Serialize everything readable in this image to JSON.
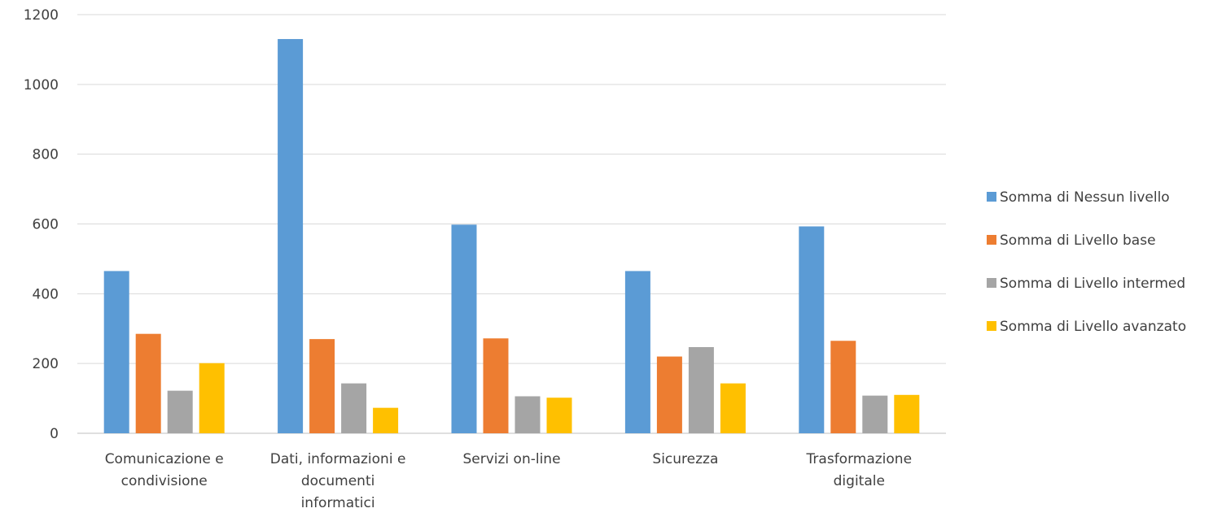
{
  "chart_data": {
    "type": "bar",
    "title": "",
    "xlabel": "",
    "ylabel": "",
    "ylim": [
      0,
      1200
    ],
    "yticks": [
      0,
      200,
      400,
      600,
      800,
      1000,
      1200
    ],
    "grid": true,
    "legend_position": "right",
    "categories": [
      [
        "Comunicazione e",
        "condivisione"
      ],
      [
        "Dati, informazioni e",
        "documenti",
        "informatici"
      ],
      [
        "Servizi on-line"
      ],
      [
        "Sicurezza"
      ],
      [
        "Trasformazione",
        "digitale"
      ]
    ],
    "series": [
      {
        "name": "Somma di Nessun livello",
        "color": "#5B9BD5",
        "values": [
          465,
          1130,
          598,
          465,
          593
        ]
      },
      {
        "name": "Somma di Livello base",
        "color": "#ED7D31",
        "values": [
          285,
          270,
          272,
          220,
          265
        ]
      },
      {
        "name": "Somma di Livello intermed",
        "color": "#A5A5A5",
        "values": [
          122,
          143,
          106,
          247,
          108
        ]
      },
      {
        "name": "Somma di Livello avanzato",
        "color": "#FFC000",
        "values": [
          201,
          73,
          102,
          143,
          110
        ]
      }
    ]
  }
}
